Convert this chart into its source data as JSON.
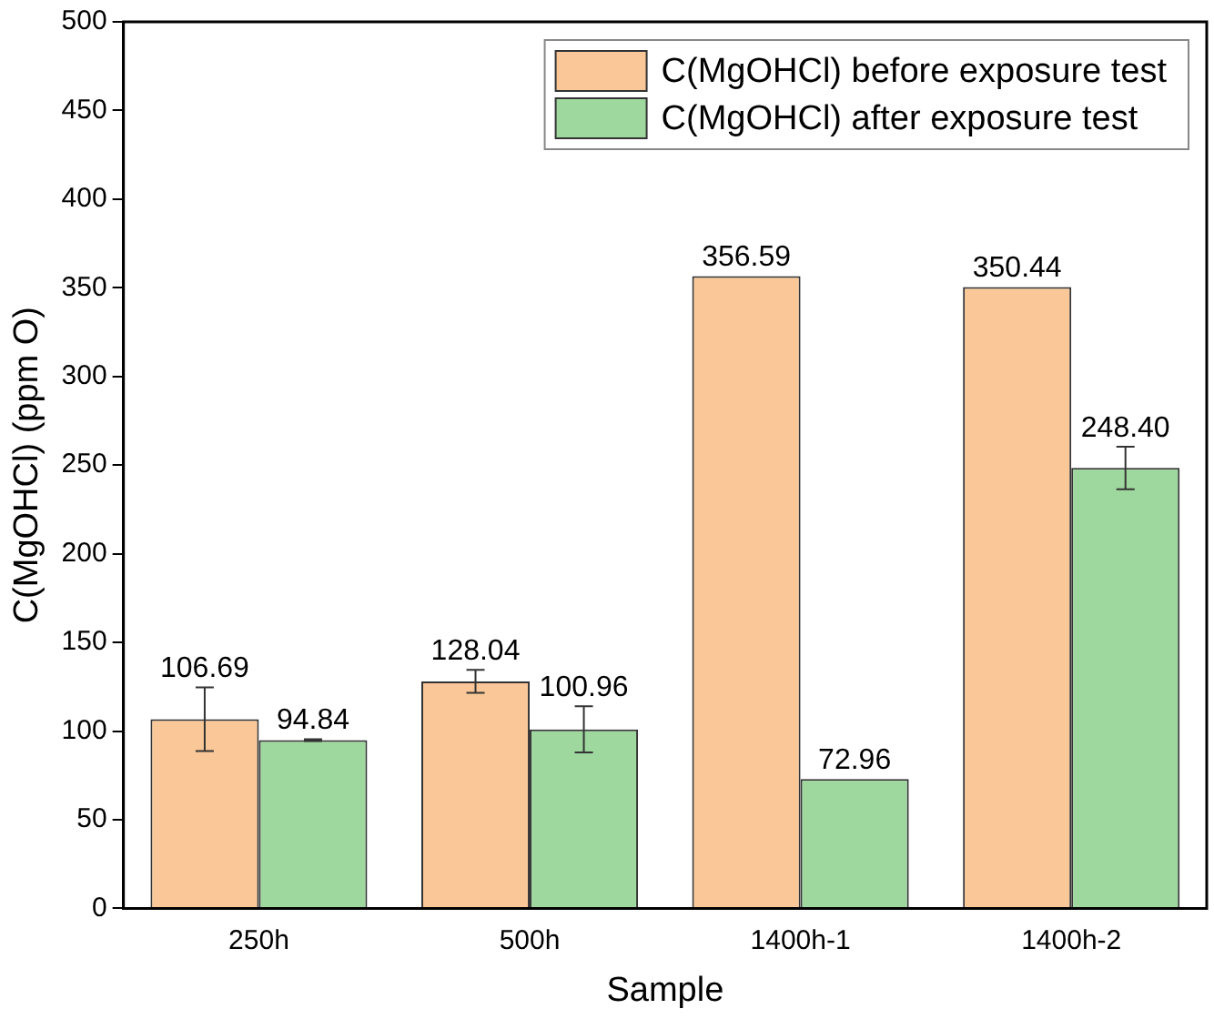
{
  "chart_data": {
    "type": "bar",
    "xlabel": "Sample",
    "ylabel": "C(MgOHCl) (ppm O)",
    "categories": [
      "250h",
      "500h",
      "1400h-1",
      "1400h-2"
    ],
    "series": [
      {
        "name": "C(MgOHCl) before exposure test",
        "color": "#fac898",
        "values": [
          106.69,
          128.04,
          356.59,
          350.44
        ],
        "value_labels": [
          "106.69",
          "128.04",
          "356.59",
          "350.44"
        ],
        "errors": [
          18,
          6.5,
          null,
          null
        ]
      },
      {
        "name": "C(MgOHCl) after exposure test",
        "color": "#9fd89e",
        "values": [
          94.84,
          100.96,
          72.96,
          248.4
        ],
        "value_labels": [
          "94.84",
          "100.96",
          "72.96",
          "248.40"
        ],
        "errors": [
          0.5,
          13,
          null,
          12
        ]
      }
    ],
    "ylim": [
      0,
      500
    ],
    "yticks": [
      0,
      50,
      100,
      150,
      200,
      250,
      300,
      350,
      400,
      450,
      500
    ],
    "grid": false,
    "legend": "top right"
  }
}
